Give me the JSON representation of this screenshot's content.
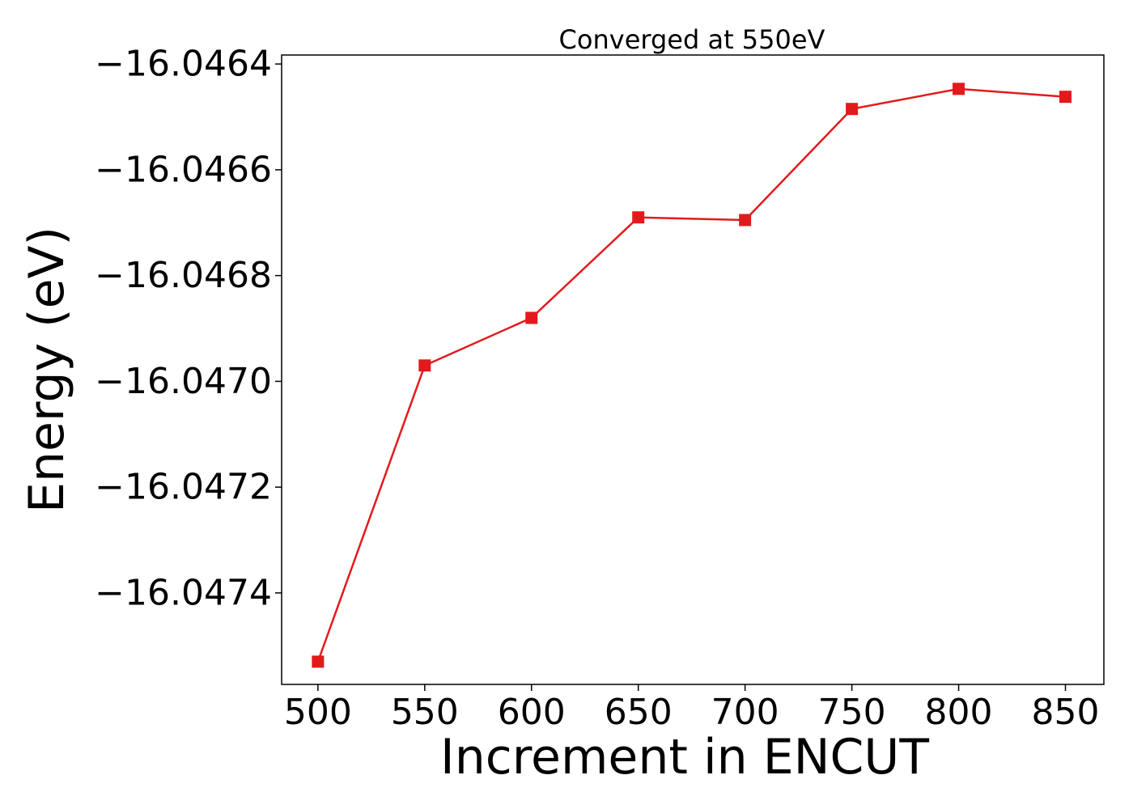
{
  "chart_data": {
    "type": "line",
    "title": "Converged at 550eV",
    "xlabel": "Increment in ENCUT",
    "ylabel": "Energy (eV)",
    "x": [
      500,
      550,
      600,
      650,
      700,
      750,
      800,
      850
    ],
    "series": [
      {
        "values": [
          -16.04753,
          -16.04697,
          -16.04688,
          -16.04669,
          -16.046695,
          -16.046485,
          -16.046447,
          -16.046462
        ],
        "color": "#e31a1c",
        "marker": "square"
      }
    ],
    "xticks": [
      500,
      550,
      600,
      650,
      700,
      750,
      800,
      850
    ],
    "xtick_labels": [
      "500",
      "550",
      "600",
      "650",
      "700",
      "750",
      "800",
      "850"
    ],
    "yticks": [
      -16.0464,
      -16.0466,
      -16.0468,
      -16.047,
      -16.0472,
      -16.0474
    ],
    "ytick_labels": [
      "−16.0464",
      "−16.0466",
      "−16.0468",
      "−16.0470",
      "−16.0472",
      "−16.0474"
    ],
    "xlim": [
      483,
      868
    ],
    "ylim": [
      -16.047573,
      -16.046383
    ],
    "grid": false,
    "legend": "none"
  }
}
